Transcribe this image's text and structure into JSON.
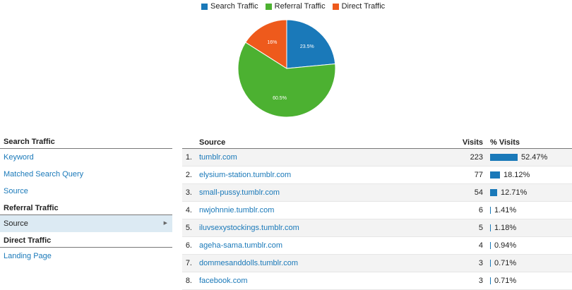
{
  "legend": [
    {
      "label": "Search Traffic",
      "color": "#1a79b9"
    },
    {
      "label": "Referral Traffic",
      "color": "#4cb131"
    },
    {
      "label": "Direct Traffic",
      "color": "#ee5a1c"
    }
  ],
  "pie": {
    "slices": [
      {
        "label": "23.5%",
        "value": 23.5,
        "color": "#1a79b9"
      },
      {
        "label": "60.5%",
        "value": 60.5,
        "color": "#4cb131"
      },
      {
        "label": "16%",
        "value": 16,
        "color": "#ee5a1c"
      }
    ]
  },
  "sidebar": {
    "groups": [
      {
        "title": "Search Traffic",
        "items": [
          "Keyword",
          "Matched Search Query",
          "Source"
        ]
      },
      {
        "title": "Referral Traffic",
        "items": [
          "Source"
        ]
      },
      {
        "title": "Direct Traffic",
        "items": [
          "Landing Page"
        ]
      }
    ],
    "selected": "Referral Traffic / Source"
  },
  "table": {
    "headers": {
      "source": "Source",
      "visits": "Visits",
      "pct": "% Visits"
    },
    "rows": [
      {
        "idx": "1.",
        "source": "tumblr.com",
        "visits": "223",
        "pct": "52.47%",
        "fraction": 0.5247
      },
      {
        "idx": "2.",
        "source": "elysium-station.tumblr.com",
        "visits": "77",
        "pct": "18.12%",
        "fraction": 0.1812
      },
      {
        "idx": "3.",
        "source": "small-pussy.tumblr.com",
        "visits": "54",
        "pct": "12.71%",
        "fraction": 0.1271
      },
      {
        "idx": "4.",
        "source": "nwjohnnie.tumblr.com",
        "visits": "6",
        "pct": "1.41%",
        "fraction": 0.0141
      },
      {
        "idx": "5.",
        "source": "iluvsexystockings.tumblr.com",
        "visits": "5",
        "pct": "1.18%",
        "fraction": 0.0118
      },
      {
        "idx": "6.",
        "source": "ageha-sama.tumblr.com",
        "visits": "4",
        "pct": "0.94%",
        "fraction": 0.0094
      },
      {
        "idx": "7.",
        "source": "dommesanddolls.tumblr.com",
        "visits": "3",
        "pct": "0.71%",
        "fraction": 0.0071
      },
      {
        "idx": "8.",
        "source": "facebook.com",
        "visits": "3",
        "pct": "0.71%",
        "fraction": 0.0071
      }
    ]
  }
}
